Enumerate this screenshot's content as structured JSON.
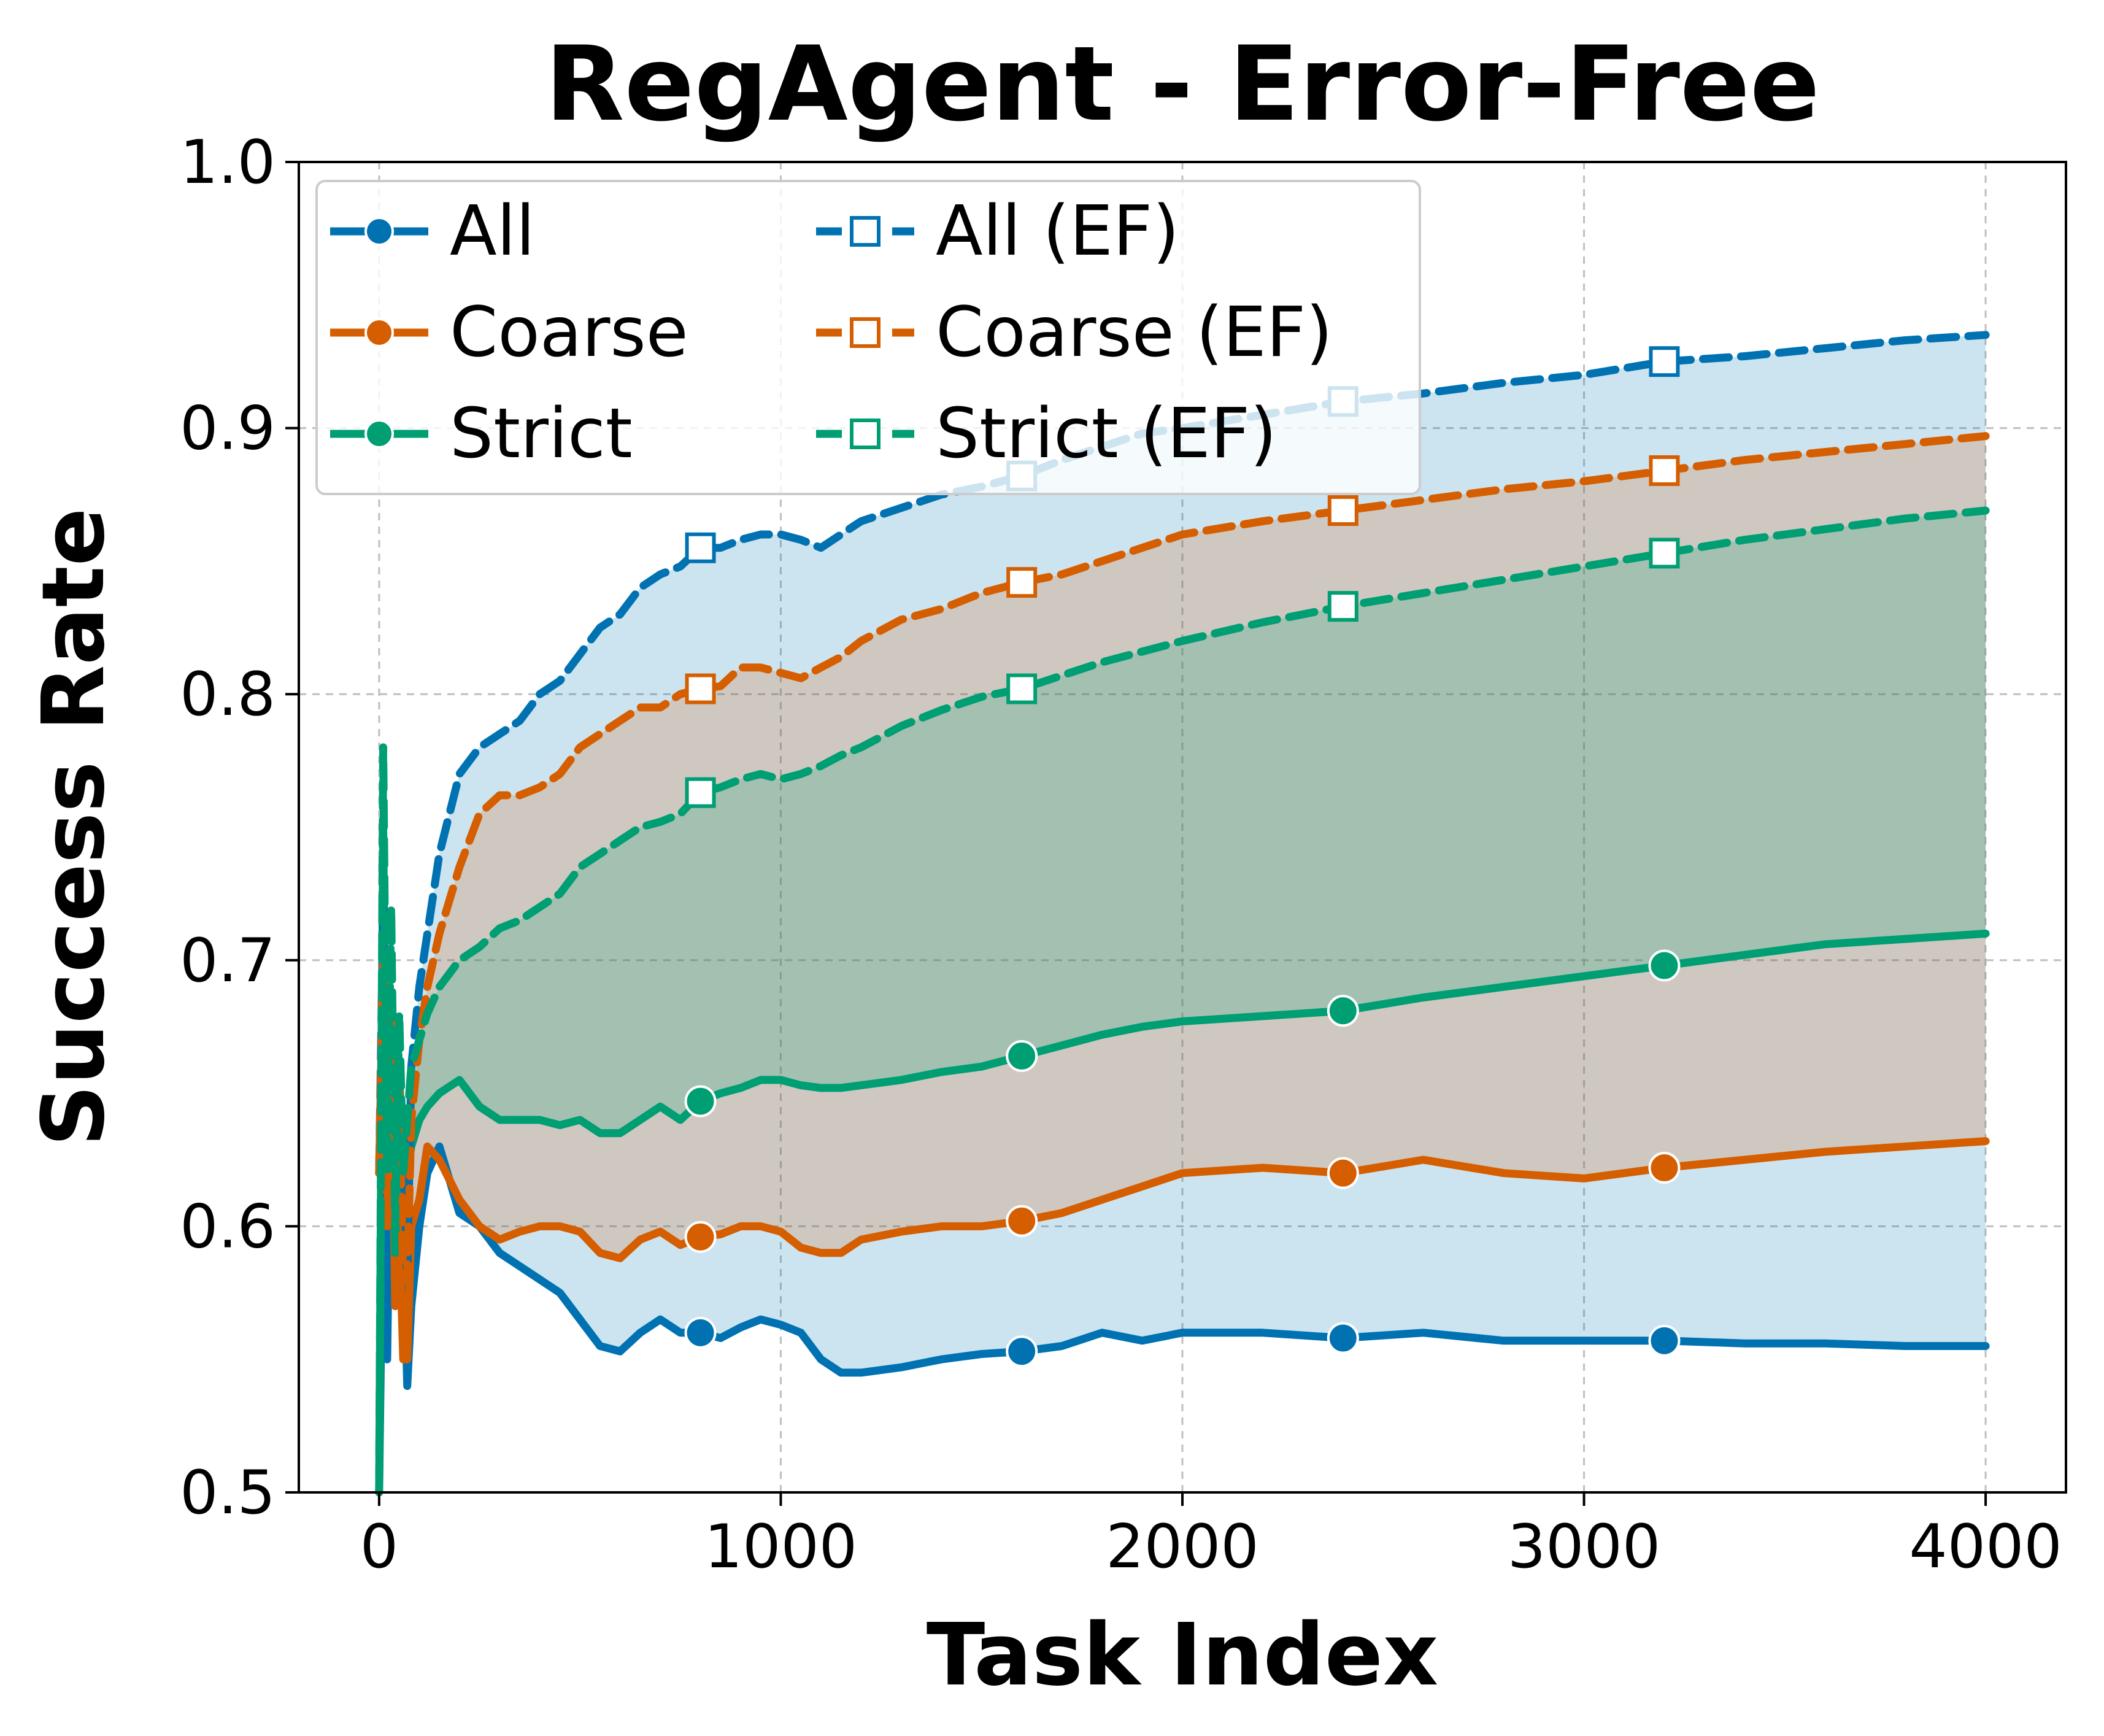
{
  "chart_data": {
    "type": "line",
    "title": "RegAgent - Error-Free",
    "xlabel": "Task Index",
    "ylabel": "Success Rate",
    "xlim": [
      -200,
      4200
    ],
    "ylim": [
      0.5,
      1.0
    ],
    "xticks": [
      0,
      1000,
      2000,
      3000,
      4000
    ],
    "xtick_labels": [
      "0",
      "1000",
      "2000",
      "3000",
      "4000"
    ],
    "yticks": [
      0.5,
      0.6,
      0.7,
      0.8,
      0.9,
      1.0
    ],
    "ytick_labels": [
      "0.5",
      "0.6",
      "0.7",
      "0.8",
      "0.9",
      "1.0"
    ],
    "grid": true,
    "legend": "upper-left, 2 columns",
    "colors": {
      "all": "#0072B2",
      "coarse": "#D55E00",
      "strict": "#009E73"
    },
    "shading": "area between each baseline series and its EF series is filled with the series color at low opacity",
    "series": [
      {
        "name": "All",
        "color": "#0072B2",
        "style": "solid",
        "marker": "filled-circle",
        "x": [
          0,
          10,
          20,
          30,
          40,
          50,
          60,
          70,
          80,
          100,
          120,
          150,
          200,
          250,
          300,
          350,
          400,
          450,
          500,
          550,
          600,
          650,
          700,
          750,
          800,
          850,
          900,
          950,
          1000,
          1050,
          1100,
          1150,
          1200,
          1300,
          1400,
          1500,
          1600,
          1700,
          1800,
          1900,
          2000,
          2200,
          2400,
          2600,
          2800,
          3000,
          3200,
          3400,
          3600,
          3800,
          4000
        ],
        "y": [
          0.5,
          0.62,
          0.55,
          0.66,
          0.58,
          0.62,
          0.6,
          0.54,
          0.57,
          0.6,
          0.62,
          0.63,
          0.605,
          0.6,
          0.59,
          0.585,
          0.58,
          0.575,
          0.565,
          0.555,
          0.553,
          0.56,
          0.565,
          0.56,
          0.56,
          0.558,
          0.562,
          0.565,
          0.563,
          0.56,
          0.55,
          0.545,
          0.545,
          0.547,
          0.55,
          0.552,
          0.553,
          0.555,
          0.56,
          0.557,
          0.56,
          0.56,
          0.558,
          0.56,
          0.557,
          0.557,
          0.557,
          0.556,
          0.556,
          0.555,
          0.555
        ],
        "marker_x": [
          800,
          1600,
          2400,
          3200
        ]
      },
      {
        "name": "Coarse",
        "color": "#D55E00",
        "style": "solid",
        "marker": "filled-circle",
        "x": [
          0,
          10,
          20,
          30,
          40,
          50,
          60,
          70,
          80,
          100,
          120,
          150,
          200,
          250,
          300,
          350,
          400,
          450,
          500,
          550,
          600,
          650,
          700,
          750,
          800,
          850,
          900,
          950,
          1000,
          1050,
          1100,
          1150,
          1200,
          1300,
          1400,
          1500,
          1600,
          1700,
          1800,
          1900,
          2000,
          2200,
          2400,
          2600,
          2800,
          3000,
          3200,
          3400,
          3600,
          3800,
          4000
        ],
        "y": [
          0.62,
          0.7,
          0.6,
          0.68,
          0.57,
          0.6,
          0.55,
          0.55,
          0.6,
          0.61,
          0.63,
          0.625,
          0.61,
          0.6,
          0.595,
          0.598,
          0.6,
          0.6,
          0.598,
          0.59,
          0.588,
          0.595,
          0.598,
          0.593,
          0.596,
          0.597,
          0.6,
          0.6,
          0.598,
          0.592,
          0.59,
          0.59,
          0.595,
          0.598,
          0.6,
          0.6,
          0.602,
          0.605,
          0.61,
          0.615,
          0.62,
          0.622,
          0.62,
          0.625,
          0.62,
          0.618,
          0.622,
          0.625,
          0.628,
          0.63,
          0.632
        ],
        "marker_x": [
          800,
          1600,
          2400,
          3200
        ]
      },
      {
        "name": "Strict",
        "color": "#009E73",
        "style": "solid",
        "marker": "filled-circle",
        "x": [
          0,
          10,
          20,
          30,
          40,
          50,
          60,
          70,
          80,
          100,
          120,
          150,
          200,
          250,
          300,
          350,
          400,
          450,
          500,
          550,
          600,
          650,
          700,
          750,
          800,
          850,
          900,
          950,
          1000,
          1050,
          1100,
          1150,
          1200,
          1300,
          1400,
          1500,
          1600,
          1700,
          1800,
          1900,
          2000,
          2200,
          2400,
          2600,
          2800,
          3000,
          3200,
          3400,
          3600,
          3800,
          4000
        ],
        "y": [
          0.5,
          0.75,
          0.6,
          0.67,
          0.59,
          0.66,
          0.61,
          0.62,
          0.63,
          0.64,
          0.645,
          0.65,
          0.655,
          0.645,
          0.64,
          0.64,
          0.64,
          0.638,
          0.64,
          0.635,
          0.635,
          0.64,
          0.645,
          0.64,
          0.647,
          0.65,
          0.652,
          0.655,
          0.655,
          0.653,
          0.652,
          0.652,
          0.653,
          0.655,
          0.658,
          0.66,
          0.664,
          0.668,
          0.672,
          0.675,
          0.677,
          0.679,
          0.681,
          0.686,
          0.69,
          0.694,
          0.698,
          0.702,
          0.706,
          0.708,
          0.71
        ],
        "marker_x": [
          800,
          1600,
          2400,
          3200
        ]
      },
      {
        "name": "All (EF)",
        "color": "#0072B2",
        "style": "dashed",
        "marker": "open-square",
        "x": [
          0,
          10,
          20,
          30,
          40,
          50,
          60,
          70,
          80,
          100,
          120,
          150,
          200,
          250,
          300,
          350,
          400,
          450,
          500,
          550,
          600,
          650,
          700,
          750,
          800,
          850,
          900,
          950,
          1000,
          1050,
          1100,
          1150,
          1200,
          1300,
          1400,
          1500,
          1600,
          1700,
          1800,
          1900,
          2000,
          2200,
          2400,
          2600,
          2800,
          3000,
          3200,
          3400,
          3600,
          3800,
          4000
        ],
        "y": [
          0.62,
          0.72,
          0.6,
          0.67,
          0.6,
          0.65,
          0.63,
          0.58,
          0.66,
          0.69,
          0.71,
          0.74,
          0.77,
          0.78,
          0.785,
          0.79,
          0.8,
          0.805,
          0.815,
          0.825,
          0.83,
          0.84,
          0.845,
          0.848,
          0.855,
          0.855,
          0.858,
          0.86,
          0.86,
          0.858,
          0.855,
          0.86,
          0.865,
          0.87,
          0.875,
          0.878,
          0.882,
          0.888,
          0.893,
          0.898,
          0.9,
          0.905,
          0.91,
          0.913,
          0.917,
          0.92,
          0.925,
          0.927,
          0.93,
          0.933,
          0.935
        ],
        "marker_x": [
          800,
          1600,
          2400,
          3200
        ]
      },
      {
        "name": "Coarse (EF)",
        "color": "#D55E00",
        "style": "dashed",
        "marker": "open-square",
        "x": [
          0,
          10,
          20,
          30,
          40,
          50,
          60,
          70,
          80,
          100,
          120,
          150,
          200,
          250,
          300,
          350,
          400,
          450,
          500,
          550,
          600,
          650,
          700,
          750,
          800,
          850,
          900,
          950,
          1000,
          1050,
          1100,
          1150,
          1200,
          1300,
          1400,
          1500,
          1600,
          1700,
          1800,
          1900,
          2000,
          2200,
          2400,
          2600,
          2800,
          3000,
          3200,
          3400,
          3600,
          3800,
          4000
        ],
        "y": [
          0.62,
          0.7,
          0.6,
          0.68,
          0.6,
          0.65,
          0.58,
          0.58,
          0.64,
          0.67,
          0.69,
          0.71,
          0.735,
          0.755,
          0.762,
          0.762,
          0.765,
          0.77,
          0.78,
          0.785,
          0.79,
          0.795,
          0.795,
          0.8,
          0.802,
          0.803,
          0.81,
          0.81,
          0.808,
          0.806,
          0.81,
          0.814,
          0.82,
          0.828,
          0.832,
          0.838,
          0.842,
          0.845,
          0.85,
          0.855,
          0.86,
          0.865,
          0.869,
          0.873,
          0.877,
          0.88,
          0.884,
          0.888,
          0.891,
          0.894,
          0.897
        ],
        "marker_x": [
          800,
          1600,
          2400,
          3200
        ]
      },
      {
        "name": "Strict (EF)",
        "color": "#009E73",
        "style": "dashed",
        "marker": "open-square",
        "x": [
          0,
          10,
          20,
          30,
          40,
          50,
          60,
          70,
          80,
          100,
          120,
          150,
          200,
          250,
          300,
          350,
          400,
          450,
          500,
          550,
          600,
          650,
          700,
          750,
          800,
          850,
          900,
          950,
          1000,
          1050,
          1100,
          1150,
          1200,
          1300,
          1400,
          1500,
          1600,
          1700,
          1800,
          1900,
          2000,
          2200,
          2400,
          2600,
          2800,
          3000,
          3200,
          3400,
          3600,
          3800,
          4000
        ],
        "y": [
          0.5,
          0.78,
          0.62,
          0.72,
          0.6,
          0.68,
          0.62,
          0.64,
          0.66,
          0.67,
          0.68,
          0.69,
          0.7,
          0.705,
          0.712,
          0.715,
          0.72,
          0.725,
          0.735,
          0.74,
          0.745,
          0.75,
          0.752,
          0.755,
          0.763,
          0.765,
          0.768,
          0.77,
          0.768,
          0.77,
          0.773,
          0.777,
          0.78,
          0.788,
          0.794,
          0.799,
          0.802,
          0.807,
          0.812,
          0.816,
          0.82,
          0.827,
          0.833,
          0.838,
          0.843,
          0.848,
          0.853,
          0.858,
          0.862,
          0.866,
          0.869
        ],
        "marker_x": [
          800,
          1600,
          2400,
          3200
        ]
      }
    ],
    "bands": [
      {
        "lower": "All",
        "upper": "All (EF)",
        "color": "#0072B2"
      },
      {
        "lower": "Coarse",
        "upper": "Coarse (EF)",
        "color": "#D55E00"
      },
      {
        "lower": "Strict",
        "upper": "Strict (EF)",
        "color": "#009E73"
      }
    ]
  }
}
